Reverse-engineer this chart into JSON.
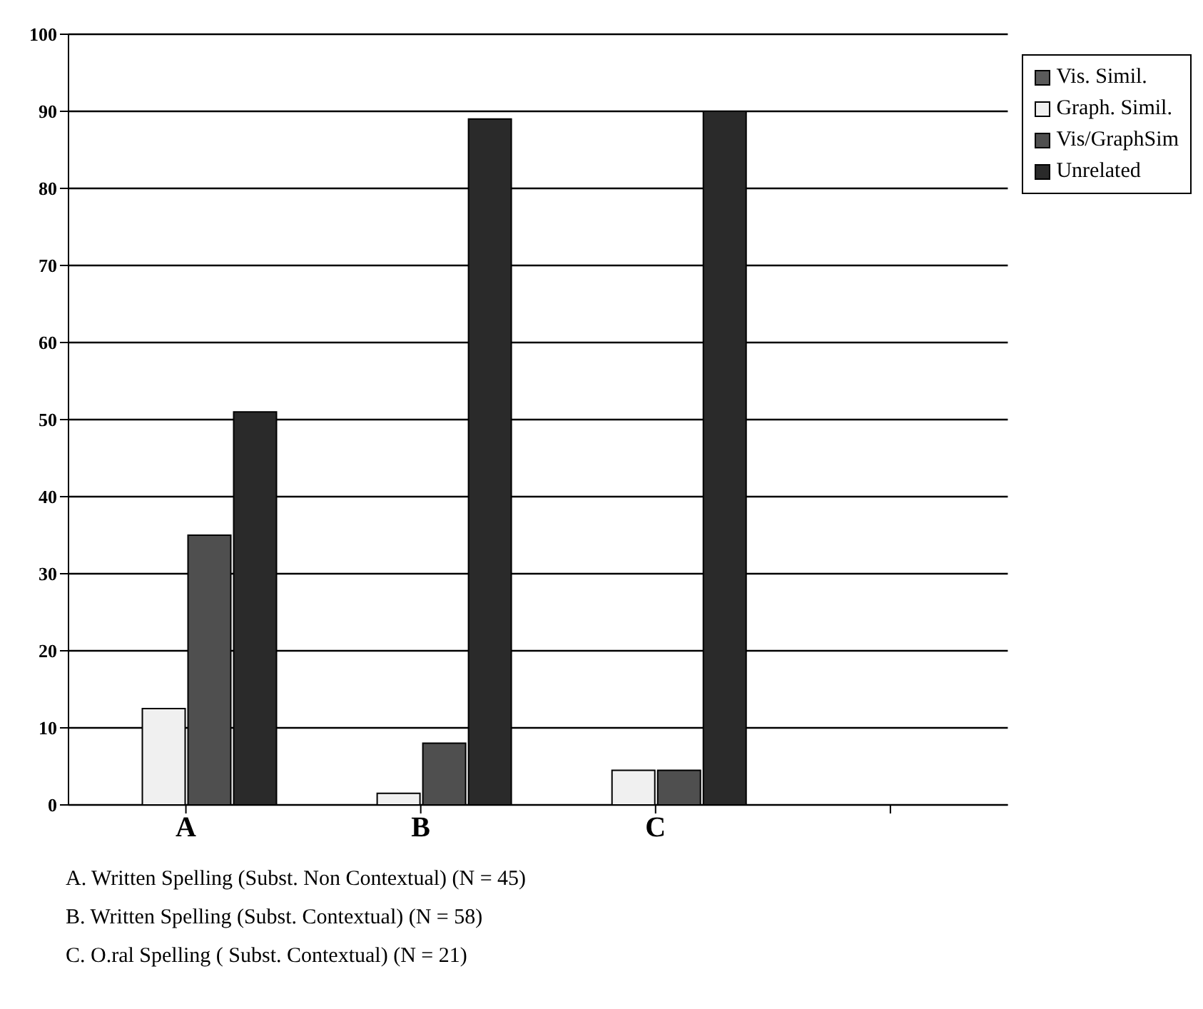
{
  "chart_data": {
    "type": "bar",
    "categories": [
      "A",
      "B",
      "C",
      null
    ],
    "series": [
      {
        "name": "Vis. Simil.",
        "color": "#5a5a5a",
        "values": [
          0,
          0,
          0,
          null
        ]
      },
      {
        "name": "Graph. Simil.",
        "color": "#f0f0f0",
        "values": [
          12.5,
          1.5,
          4.5,
          null
        ]
      },
      {
        "name": "Vis/GraphSim",
        "color": "#4f4f4f",
        "values": [
          35,
          8,
          4.5,
          null
        ]
      },
      {
        "name": "Unrelated",
        "color": "#2a2a2a",
        "values": [
          51,
          89,
          90,
          null
        ]
      }
    ],
    "ylim": [
      0,
      100
    ],
    "yticks": [
      0,
      10,
      20,
      30,
      40,
      50,
      60,
      70,
      80,
      90,
      100
    ],
    "grid": "y",
    "legend": "top right",
    "annotations": [
      "A. Written Spelling (Subst. Non Contextual) (N = 45)",
      "B. Written Spelling (Subst. Contextual) (N = 58)",
      "C. O.ral Spelling ( Subst. Contextual) (N = 21)"
    ]
  }
}
